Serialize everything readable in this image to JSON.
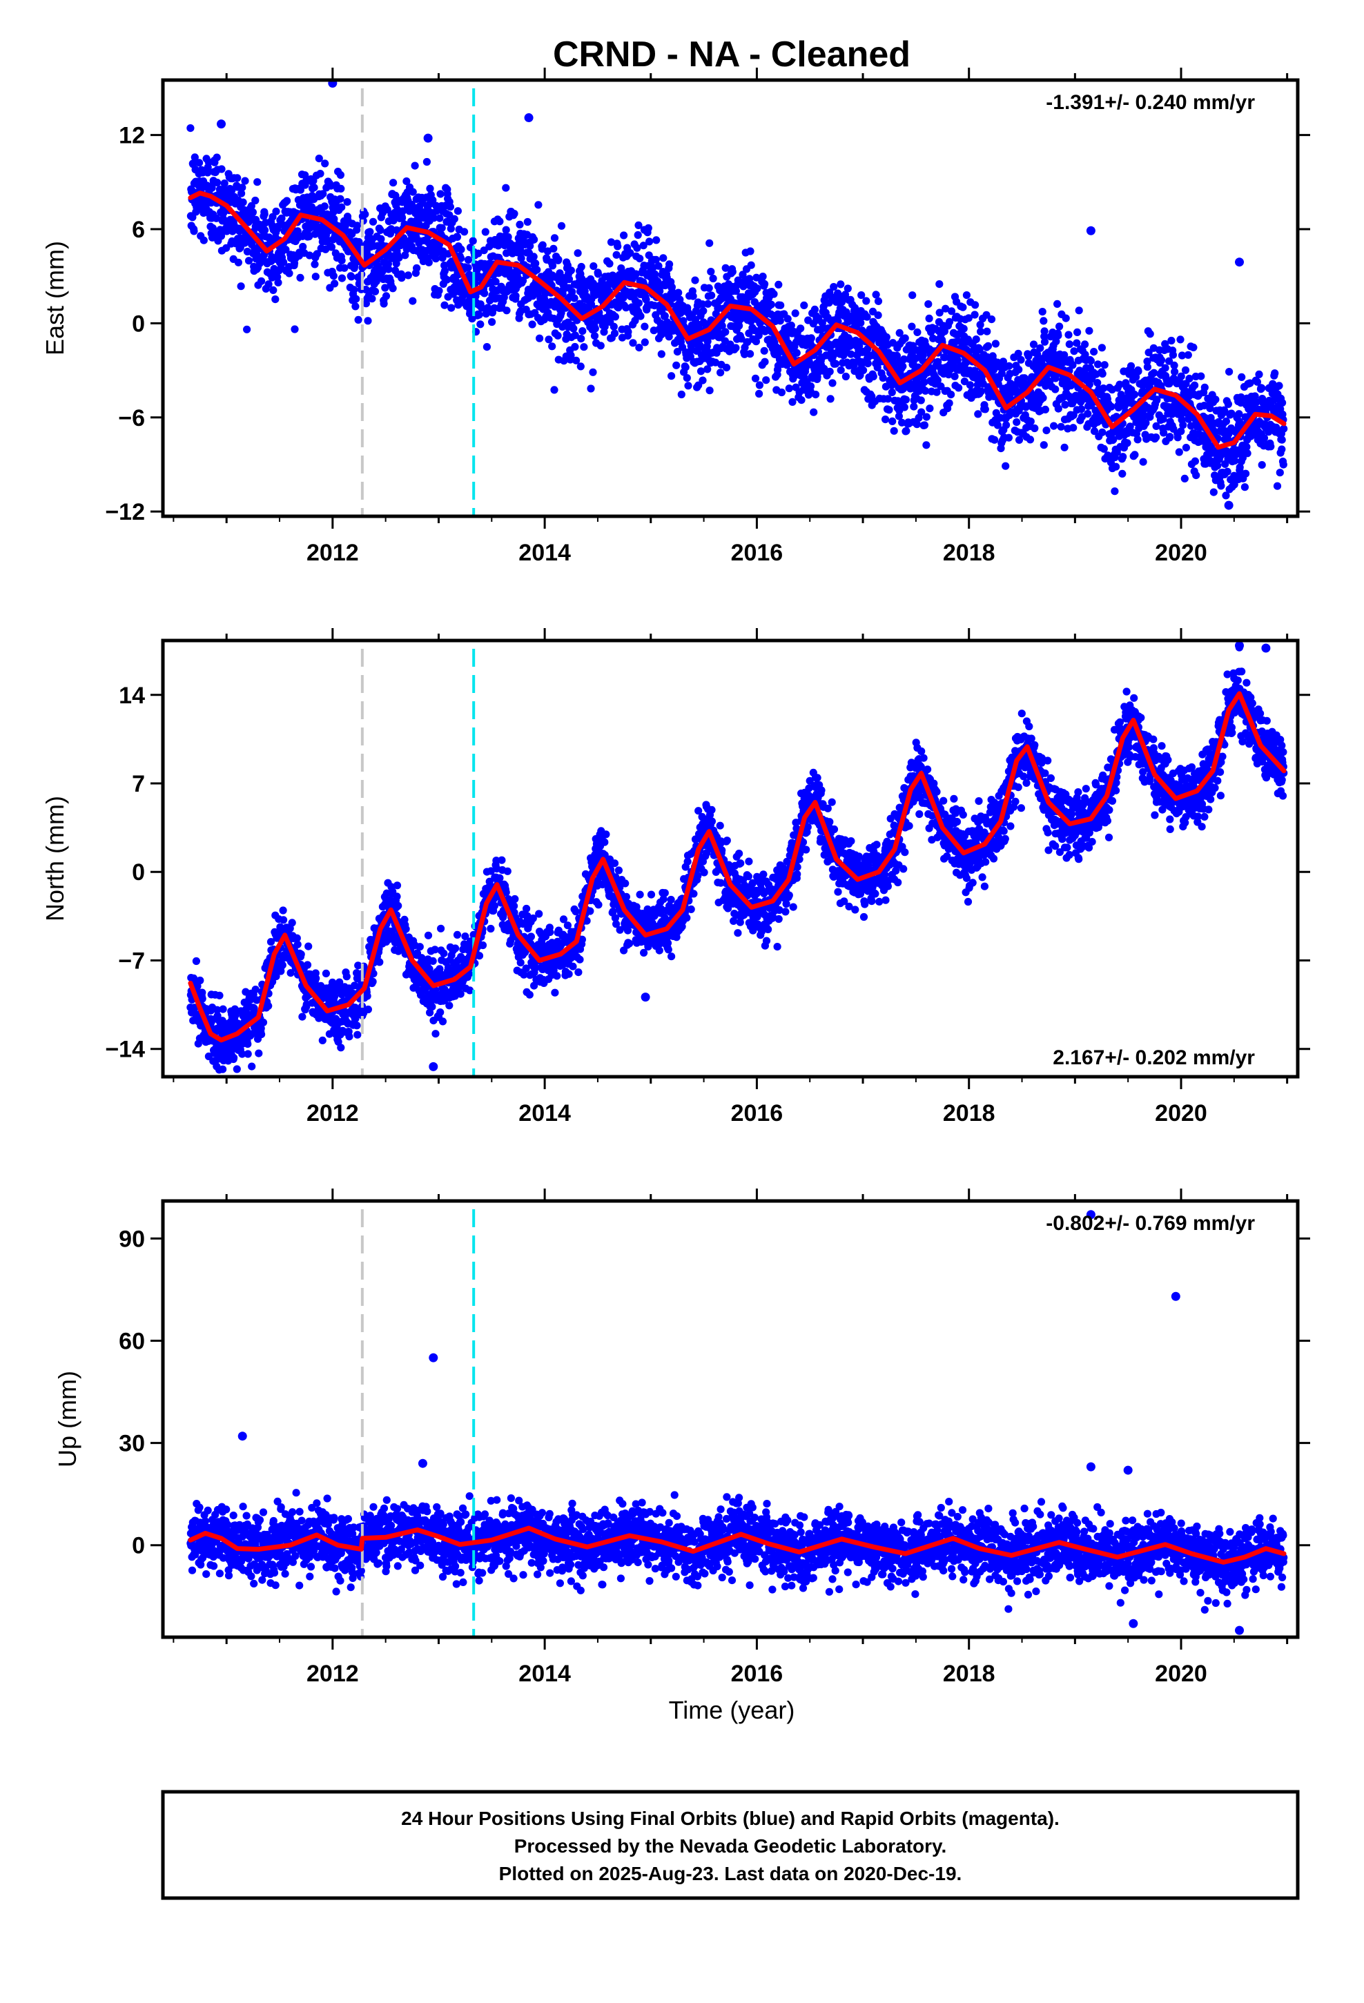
{
  "title": "CRND  - NA - Cleaned",
  "xlabel": "Time (year)",
  "footer": {
    "lines": [
      "24 Hour Positions Using Final Orbits (blue) and Rapid Orbits (magenta).",
      "Processed by the Nevada Geodetic Laboratory.",
      "Plotted on 2025-Aug-23. Last data on 2020-Dec-19."
    ]
  },
  "colors": {
    "points": "#0000ff",
    "model": "#ff0000",
    "event_gray": "#c8c8c8",
    "event_cyan": "#00e5ee"
  },
  "chart_data": [
    {
      "type": "scatter",
      "component": "east",
      "ylabel": "East (mm)",
      "rate_text": "-1.391+/- 0.240 mm/yr",
      "rate_position": "top-right",
      "xlim": [
        2010.4,
        2021.1
      ],
      "ylim": [
        -12.3,
        15.5
      ],
      "xticks": [
        2012,
        2014,
        2016,
        2018,
        2020
      ],
      "yticks": [
        12,
        6,
        0,
        -6,
        -12
      ],
      "vertical_events": [
        {
          "year": 2012.28,
          "color": "gray"
        },
        {
          "year": 2013.33,
          "color": "cyan"
        }
      ],
      "trend": {
        "start": 2010.66,
        "end": 2020.97,
        "value_at_start": 7.6,
        "rate": -1.391,
        "annual_amplitude": 1.5,
        "annual_peak": 0.7
      },
      "scatter_sd": 1.6,
      "model_line": {
        "x": [
          2010.66,
          2010.75,
          2010.85,
          2011.0,
          2011.2,
          2011.38,
          2011.55,
          2011.7,
          2011.9,
          2012.1,
          2012.3,
          2012.5,
          2012.7,
          2012.9,
          2013.1,
          2013.3,
          2013.4,
          2013.55,
          2013.75,
          2013.95,
          2014.15,
          2014.35,
          2014.55,
          2014.75,
          2014.95,
          2015.15,
          2015.35,
          2015.55,
          2015.75,
          2015.95,
          2016.15,
          2016.35,
          2016.55,
          2016.75,
          2016.95,
          2017.15,
          2017.35,
          2017.55,
          2017.75,
          2017.95,
          2018.15,
          2018.35,
          2018.55,
          2018.75,
          2018.95,
          2019.15,
          2019.35,
          2019.55,
          2019.75,
          2019.95,
          2020.15,
          2020.35,
          2020.5,
          2020.7,
          2020.85,
          2020.97
        ],
        "y": [
          8.0,
          8.3,
          8.1,
          7.5,
          6.0,
          4.6,
          5.4,
          6.9,
          6.6,
          5.6,
          3.7,
          4.7,
          6.1,
          5.8,
          5.0,
          2.0,
          2.3,
          3.9,
          3.7,
          2.7,
          1.6,
          0.3,
          1.1,
          2.6,
          2.3,
          1.2,
          -1.0,
          -0.4,
          1.1,
          0.9,
          -0.2,
          -2.6,
          -1.7,
          -0.1,
          -0.6,
          -1.8,
          -3.8,
          -3.0,
          -1.4,
          -1.9,
          -3.0,
          -5.4,
          -4.4,
          -2.8,
          -3.3,
          -4.4,
          -6.6,
          -5.5,
          -4.2,
          -4.6,
          -5.8,
          -7.9,
          -7.6,
          -5.8,
          -5.9,
          -6.4
        ]
      },
      "outliers": [
        {
          "x": 2012.0,
          "y": 15.3
        },
        {
          "x": 2010.95,
          "y": 12.7
        },
        {
          "x": 2012.9,
          "y": 11.8
        },
        {
          "x": 2013.85,
          "y": 13.1
        },
        {
          "x": 2019.15,
          "y": 5.9
        },
        {
          "x": 2020.55,
          "y": 3.9
        },
        {
          "x": 2020.45,
          "y": -11.6
        }
      ]
    },
    {
      "type": "scatter",
      "component": "north",
      "ylabel": "North (mm)",
      "rate_text": "2.167+/- 0.202 mm/yr",
      "rate_position": "bottom-right",
      "xlim": [
        2010.4,
        2021.1
      ],
      "ylim": [
        -16.2,
        18.3
      ],
      "xticks": [
        2012,
        2014,
        2016,
        2018,
        2020
      ],
      "yticks": [
        14,
        7,
        0,
        -7,
        -14
      ],
      "vertical_events": [
        {
          "year": 2012.28,
          "color": "gray"
        },
        {
          "year": 2013.33,
          "color": "cyan"
        }
      ],
      "trend": {
        "start": 2010.66,
        "end": 2020.97,
        "value_at_start": -11.5,
        "rate": 2.167,
        "annual_amplitude": 3.5,
        "annual_peak": 0.55
      },
      "scatter_sd": 1.2,
      "model_line": {
        "x": [
          2010.66,
          2010.75,
          2010.85,
          2010.95,
          2011.1,
          2011.3,
          2011.45,
          2011.55,
          2011.75,
          2011.95,
          2012.15,
          2012.3,
          2012.45,
          2012.55,
          2012.75,
          2012.95,
          2013.15,
          2013.3,
          2013.45,
          2013.55,
          2013.75,
          2013.95,
          2014.15,
          2014.3,
          2014.45,
          2014.55,
          2014.75,
          2014.95,
          2015.15,
          2015.3,
          2015.45,
          2015.55,
          2015.75,
          2015.95,
          2016.15,
          2016.3,
          2016.45,
          2016.55,
          2016.75,
          2016.95,
          2017.15,
          2017.3,
          2017.45,
          2017.55,
          2017.75,
          2017.95,
          2018.15,
          2018.3,
          2018.45,
          2018.55,
          2018.75,
          2018.95,
          2019.15,
          2019.3,
          2019.45,
          2019.55,
          2019.75,
          2019.95,
          2020.15,
          2020.3,
          2020.45,
          2020.55,
          2020.75,
          2020.97
        ],
        "y": [
          -8.8,
          -10.8,
          -12.8,
          -13.3,
          -12.8,
          -11.5,
          -6.5,
          -5.0,
          -9.0,
          -11.0,
          -10.5,
          -9.2,
          -4.5,
          -3.0,
          -7.0,
          -9.0,
          -8.5,
          -7.5,
          -2.5,
          -1.0,
          -5.0,
          -7.0,
          -6.5,
          -5.5,
          -0.5,
          1.0,
          -3.0,
          -5.0,
          -4.5,
          -3.0,
          1.8,
          3.2,
          -1.0,
          -2.8,
          -2.3,
          -0.6,
          4.3,
          5.5,
          1.0,
          -0.6,
          0.0,
          1.8,
          6.5,
          7.8,
          3.5,
          1.5,
          2.2,
          4.0,
          8.8,
          9.9,
          5.5,
          3.8,
          4.2,
          6.0,
          10.6,
          12.0,
          7.7,
          5.8,
          6.4,
          8.0,
          12.8,
          14.1,
          10.0,
          8.0
        ]
      },
      "outliers": [
        {
          "x": 2012.95,
          "y": -15.4
        },
        {
          "x": 2014.95,
          "y": -9.9
        },
        {
          "x": 2020.8,
          "y": 17.7
        },
        {
          "x": 2020.55,
          "y": 17.9
        }
      ]
    },
    {
      "type": "scatter",
      "component": "up",
      "ylabel": "Up (mm)",
      "rate_text": "-0.802+/- 0.769 mm/yr",
      "rate_position": "top-right",
      "xlim": [
        2010.4,
        2021.1
      ],
      "ylim": [
        -27,
        101
      ],
      "xticks": [
        2012,
        2014,
        2016,
        2018,
        2020
      ],
      "yticks": [
        90,
        60,
        30,
        0
      ],
      "vertical_events": [
        {
          "year": 2012.28,
          "color": "gray"
        },
        {
          "year": 2013.33,
          "color": "cyan"
        }
      ],
      "trend": {
        "start": 2010.66,
        "end": 2020.97,
        "value_at_start": 1.0,
        "rate": -0.802,
        "annual_amplitude": 2.0,
        "annual_peak": 0.85
      },
      "scatter_sd": 4.5,
      "model_line": {
        "x": [
          2010.66,
          2010.8,
          2010.95,
          2011.1,
          2011.3,
          2011.6,
          2011.85,
          2012.05,
          2012.27,
          2012.28,
          2012.5,
          2012.8,
          2013.0,
          2013.2,
          2013.5,
          2013.85,
          2014.1,
          2014.4,
          2014.8,
          2015.1,
          2015.4,
          2015.85,
          2016.1,
          2016.4,
          2016.8,
          2017.1,
          2017.4,
          2017.85,
          2018.1,
          2018.4,
          2018.85,
          2019.1,
          2019.4,
          2019.85,
          2020.1,
          2020.4,
          2020.6,
          2020.8,
          2020.97
        ],
        "y": [
          1.5,
          3.5,
          2.0,
          -1.0,
          -1.2,
          0.0,
          3.0,
          0.0,
          -1.2,
          2.0,
          2.3,
          4.5,
          2.5,
          0.2,
          1.5,
          5.0,
          1.8,
          -0.5,
          2.8,
          1.0,
          -1.8,
          3.2,
          0.5,
          -2.0,
          1.8,
          -0.5,
          -2.5,
          2.0,
          -1.0,
          -3.0,
          0.8,
          -1.2,
          -3.5,
          0.2,
          -2.5,
          -5.0,
          -3.5,
          -1.0,
          -2.5
        ]
      },
      "outliers": [
        {
          "x": 2012.95,
          "y": 55
        },
        {
          "x": 2011.15,
          "y": 32
        },
        {
          "x": 2012.85,
          "y": 24
        },
        {
          "x": 2019.15,
          "y": 23
        },
        {
          "x": 2019.5,
          "y": 22
        },
        {
          "x": 2019.95,
          "y": 73
        },
        {
          "x": 2019.15,
          "y": 97
        },
        {
          "x": 2019.55,
          "y": -23
        },
        {
          "x": 2020.55,
          "y": -25
        }
      ]
    }
  ]
}
